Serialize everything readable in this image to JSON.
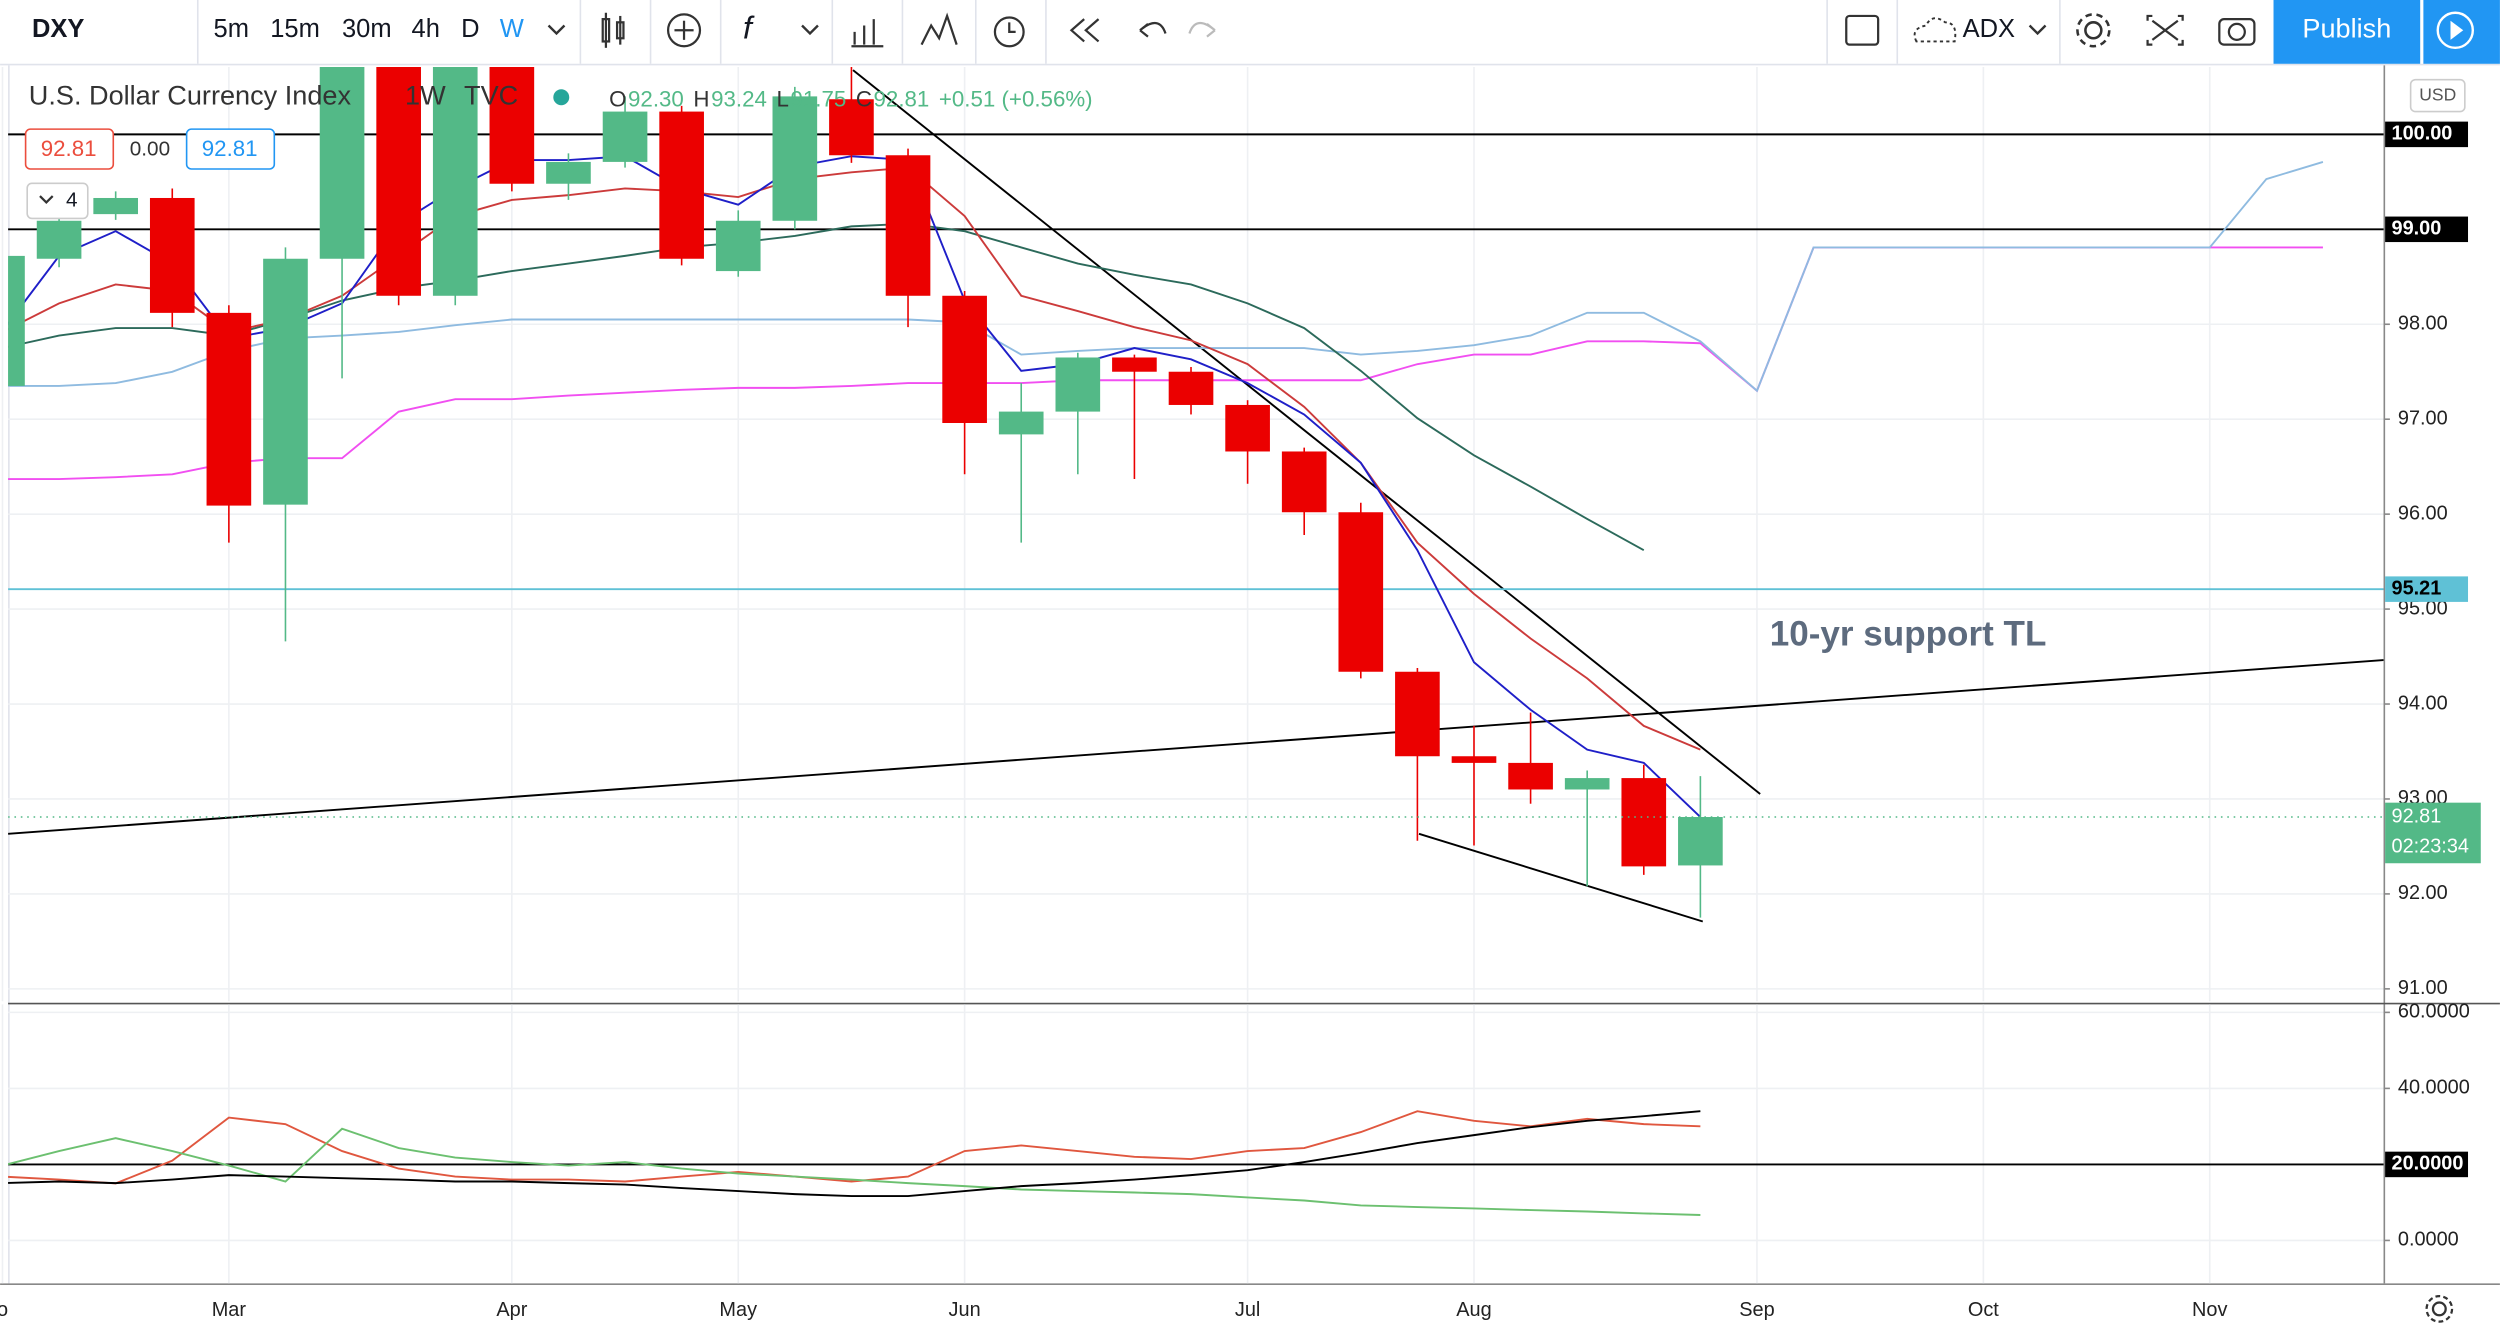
{
  "toolbar": {
    "symbol": "DXY",
    "intervals": [
      "5m",
      "15m",
      "30m",
      "4h",
      "D",
      "W"
    ],
    "indicator": "ADX",
    "publish": "Publish"
  },
  "legend": {
    "title": "U.S. Dollar Currency Index",
    "interval": "1W",
    "source": "TVC",
    "ohlc": [
      {
        "key": "O",
        "value": "92.30"
      },
      {
        "key": "H",
        "value": "93.24"
      },
      {
        "key": "L",
        "value": "91.75"
      },
      {
        "key": "C",
        "value": "92.81"
      }
    ],
    "change": "+0.51 (+0.56%)",
    "bid": "92.81",
    "spread": "0.00",
    "ask": "92.81",
    "indicators": "4",
    "currency": "USD"
  },
  "chart_data": [
    {
      "type": "candlestick",
      "categories": [
        "o",
        null,
        null,
        null,
        "Mar",
        null,
        null,
        null,
        null,
        "Apr",
        null,
        null,
        null,
        "May",
        null,
        null,
        null,
        "Jun",
        null,
        null,
        null,
        null,
        "Jul",
        null,
        null,
        null,
        "Aug",
        null,
        null,
        null,
        null,
        "Sep",
        null,
        null,
        null,
        "Oct",
        null,
        null,
        null,
        "Nov",
        null,
        null
      ],
      "open": [
        97.35,
        98.69,
        99.16,
        99.33,
        98.12,
        96.1,
        98.69,
        100.8,
        98.3,
        100.8,
        99.48,
        99.71,
        100.24,
        98.56,
        99.09,
        100.37,
        99.78,
        98.3,
        96.84,
        97.08,
        97.65,
        97.5,
        97.15,
        96.66,
        96.02,
        94.34,
        93.45,
        93.38,
        93.1,
        93.22,
        92.3,
        null,
        null,
        null,
        null,
        null,
        null,
        null,
        null,
        null,
        null,
        null
      ],
      "close": [
        98.72,
        99.09,
        99.33,
        98.12,
        96.09,
        98.69,
        100.8,
        98.3,
        100.8,
        99.48,
        99.71,
        100.24,
        98.69,
        99.09,
        100.4,
        99.78,
        98.3,
        96.96,
        97.08,
        97.65,
        97.5,
        97.15,
        96.66,
        96.02,
        94.34,
        93.45,
        93.38,
        93.1,
        93.22,
        92.29,
        92.81,
        null,
        null,
        null,
        null,
        null,
        null,
        null,
        null,
        null,
        null,
        null
      ],
      "high": [
        98.8,
        99.15,
        99.4,
        99.43,
        98.2,
        98.81,
        101.0,
        101.1,
        101.0,
        101.0,
        99.8,
        100.4,
        100.3,
        99.2,
        100.5,
        101.0,
        99.85,
        98.35,
        97.38,
        97.7,
        97.68,
        97.55,
        97.2,
        96.7,
        96.12,
        94.38,
        93.77,
        93.91,
        93.3,
        93.36,
        93.24,
        null,
        null,
        null,
        null,
        null,
        null,
        null,
        null,
        null,
        null,
        null
      ],
      "low": [
        97.3,
        98.6,
        99.1,
        97.97,
        95.7,
        94.66,
        97.43,
        98.2,
        98.2,
        99.4,
        99.31,
        99.65,
        98.62,
        98.5,
        99.0,
        99.7,
        97.97,
        96.42,
        95.7,
        96.42,
        96.37,
        97.05,
        96.32,
        95.78,
        94.27,
        92.56,
        92.51,
        92.95,
        92.08,
        92.2,
        91.75,
        null,
        null,
        null,
        null,
        null,
        null,
        null,
        null,
        null,
        null,
        null
      ],
      "up_color": "#53b987",
      "down_color": "#eb0000",
      "lines": [
        {
          "color": "#f14ff1",
          "values": [
            96.37,
            96.37,
            96.39,
            96.42,
            96.54,
            96.59,
            96.59,
            97.08,
            97.21,
            97.21,
            97.25,
            97.28,
            97.31,
            97.33,
            97.33,
            97.35,
            97.38,
            97.38,
            97.38,
            97.41,
            97.41,
            97.41,
            97.41,
            97.41,
            97.41,
            97.58,
            97.68,
            97.68,
            97.82,
            97.82,
            97.8,
            97.3,
            98.81,
            98.81,
            98.81,
            98.81,
            98.81,
            98.81,
            98.81,
            98.81,
            98.81,
            98.81
          ]
        },
        {
          "color": "#8fbbe0",
          "values": [
            97.35,
            97.35,
            97.38,
            97.5,
            97.72,
            97.85,
            97.88,
            97.92,
            97.99,
            98.05,
            98.05,
            98.05,
            98.05,
            98.05,
            98.05,
            98.05,
            98.05,
            98.02,
            97.68,
            97.72,
            97.75,
            97.75,
            97.75,
            97.75,
            97.68,
            97.72,
            97.78,
            97.88,
            98.12,
            98.12,
            97.82,
            97.3,
            98.81,
            98.81,
            98.81,
            98.81,
            98.81,
            98.81,
            98.81,
            98.81,
            99.53,
            99.71
          ]
        },
        {
          "color": "#2c6a5b",
          "values": [
            97.75,
            97.88,
            97.96,
            97.96,
            97.88,
            98.05,
            98.25,
            98.38,
            98.46,
            98.56,
            98.64,
            98.72,
            98.81,
            98.86,
            98.93,
            99.03,
            99.06,
            98.98,
            98.81,
            98.64,
            98.52,
            98.42,
            98.22,
            97.96,
            97.51,
            97.01,
            96.62,
            96.29,
            95.95,
            95.62,
            null,
            null,
            null,
            null,
            null,
            null,
            null,
            null,
            null,
            null,
            null,
            null
          ]
        },
        {
          "color": "#cc3b3b",
          "values": [
            97.92,
            98.22,
            98.42,
            98.35,
            97.92,
            98.05,
            98.3,
            98.72,
            99.14,
            99.31,
            99.36,
            99.43,
            99.4,
            99.34,
            99.53,
            99.6,
            99.65,
            99.14,
            98.3,
            98.14,
            97.97,
            97.83,
            97.58,
            97.13,
            96.54,
            95.7,
            95.16,
            94.69,
            94.27,
            93.77,
            93.52,
            null,
            null,
            null,
            null,
            null,
            null,
            null,
            null,
            null,
            null,
            null
          ]
        },
        {
          "color": "#1f1fc8",
          "values": [
            97.93,
            98.72,
            98.98,
            98.64,
            97.85,
            97.96,
            98.22,
            99.06,
            99.43,
            99.73,
            99.73,
            99.77,
            99.43,
            99.26,
            99.66,
            99.77,
            99.73,
            98.25,
            97.51,
            97.58,
            97.75,
            97.63,
            97.38,
            97.05,
            96.54,
            95.62,
            94.44,
            93.94,
            93.52,
            93.38,
            92.81,
            null,
            null,
            null,
            null,
            null,
            null,
            null,
            null,
            null,
            null,
            null
          ]
        }
      ],
      "ylim": [
        90.87,
        100.71
      ],
      "yticks": [
        {
          "value": 91,
          "label": "91.00"
        },
        {
          "value": 92,
          "label": "92.00"
        },
        {
          "value": 93,
          "label": "93.00"
        },
        {
          "value": 94,
          "label": "94.00"
        },
        {
          "value": 95,
          "label": "95.00"
        },
        {
          "value": 96,
          "label": "96.00"
        },
        {
          "value": 97,
          "label": "97.00"
        },
        {
          "value": 98,
          "label": "98.00"
        }
      ],
      "hlines": [
        {
          "value": 100,
          "label": "100.00",
          "color": "#000000"
        },
        {
          "value": 99,
          "label": "99.00",
          "color": "#000000"
        },
        {
          "value": 95.21,
          "label": "95.21",
          "color": "#5fc1d6"
        }
      ],
      "last_price": {
        "value": 92.81,
        "label": "92.81",
        "countdown": "02:23:34",
        "color": "#53b987"
      },
      "annotation": "10-yr support TL"
    },
    {
      "type": "line",
      "series": [
        {
          "color": "#e0573f",
          "values": [
            16.8,
            16.0,
            15.0,
            21.0,
            32.3,
            30.6,
            23.5,
            18.9,
            16.8,
            16.0,
            16.0,
            15.5,
            16.8,
            18.0,
            16.8,
            15.5,
            16.8,
            23.5,
            25.0,
            23.5,
            22.0,
            21.4,
            23.5,
            24.3,
            28.5,
            34.0,
            31.5,
            30.0,
            32.0,
            30.6,
            30.0,
            null,
            null,
            null,
            null,
            null,
            null,
            null,
            null,
            null,
            null,
            null
          ]
        },
        {
          "color": "#6cc070",
          "values": [
            19.7,
            23.5,
            26.9,
            23.5,
            19.7,
            15.5,
            29.4,
            24.3,
            21.8,
            20.6,
            19.7,
            20.6,
            18.9,
            17.6,
            16.8,
            16.0,
            15.1,
            14.3,
            13.4,
            13.0,
            12.6,
            12.2,
            11.3,
            10.5,
            9.2,
            8.8,
            8.4,
            8.0,
            7.6,
            7.1,
            6.7,
            null,
            null,
            null,
            null,
            null,
            null,
            null,
            null,
            null,
            null,
            null
          ]
        },
        {
          "color": "#000000",
          "values": [
            15.1,
            15.5,
            15.1,
            16.0,
            17.2,
            16.8,
            16.4,
            16.0,
            15.5,
            15.5,
            15.1,
            14.7,
            13.8,
            13.0,
            12.2,
            11.7,
            11.7,
            13.0,
            14.3,
            15.1,
            16.0,
            17.2,
            18.5,
            20.6,
            23.0,
            25.6,
            27.7,
            29.8,
            31.5,
            32.7,
            34.0,
            null,
            null,
            null,
            null,
            null,
            null,
            null,
            null,
            null,
            null,
            null
          ]
        }
      ],
      "ylim": [
        -11.3,
        62.1
      ],
      "yticks": [
        {
          "value": 0,
          "label": "0.0000"
        },
        {
          "value": 40,
          "label": "40.0000"
        },
        {
          "value": 60,
          "label": "60.0000"
        }
      ],
      "hlines": [
        {
          "value": 20,
          "label": "20.0000",
          "color": "#000000"
        }
      ]
    }
  ]
}
